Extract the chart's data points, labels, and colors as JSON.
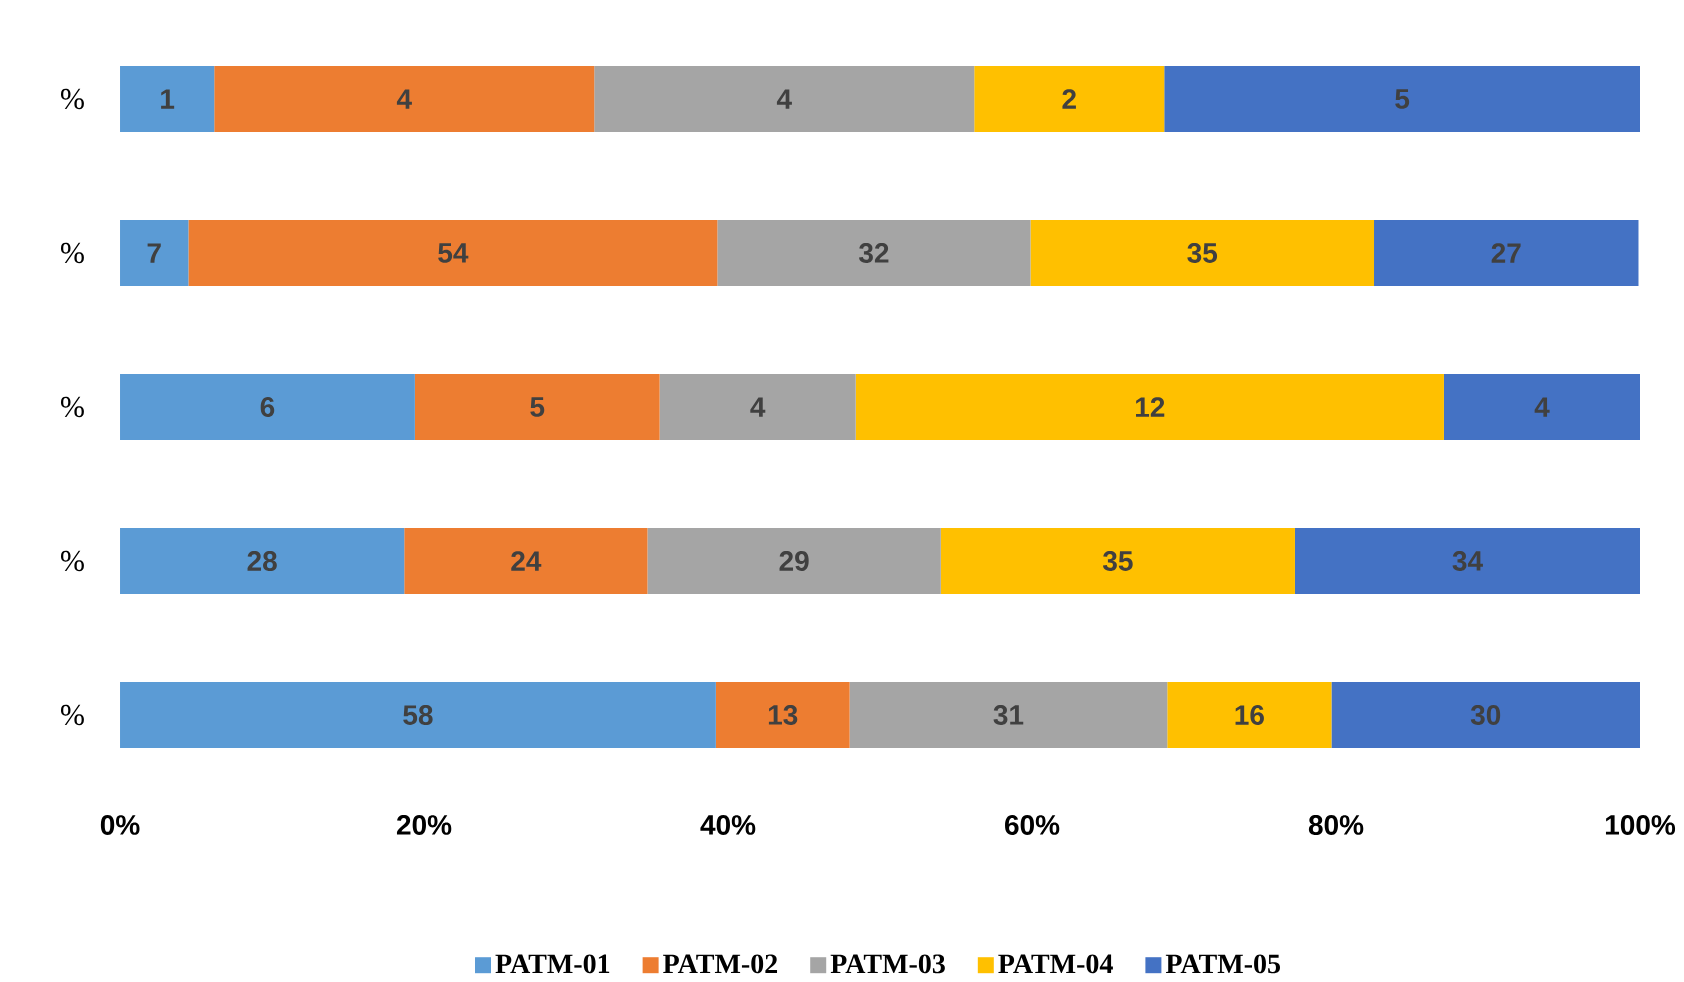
{
  "chart_data": {
    "type": "bar",
    "orientation": "horizontal",
    "stacked": true,
    "legend": "bottom",
    "categories": [
      "%",
      "%",
      "%",
      "%",
      "%"
    ],
    "xlim": [
      0,
      100
    ],
    "xticks": [
      {
        "value": 0,
        "label": "0%"
      },
      {
        "value": 20,
        "label": "20%"
      },
      {
        "value": 40,
        "label": "40%"
      },
      {
        "value": 60,
        "label": "60%"
      },
      {
        "value": 80,
        "label": "80%"
      },
      {
        "value": 100,
        "label": "100%"
      }
    ],
    "series": [
      {
        "name": "PATM-01",
        "color": "#5b9bd5",
        "values": [
          6.2,
          4.5,
          19.4,
          18.7,
          39.2
        ]
      },
      {
        "name": "PATM-02",
        "color": "#ed7d31",
        "values": [
          25,
          34.8,
          16.1,
          16,
          8.8
        ]
      },
      {
        "name": "PATM-03",
        "color": "#a5a5a5",
        "values": [
          25,
          20.6,
          12.9,
          19.3,
          20.9
        ]
      },
      {
        "name": "PATM-04",
        "color": "#ffc000",
        "values": [
          12.5,
          22.6,
          38.7,
          23.3,
          10.8
        ]
      },
      {
        "name": "PATM-05",
        "color": "#4472c4",
        "values": [
          31.3,
          17.4,
          12.9,
          22.7,
          20.3
        ]
      }
    ],
    "annotations": [
      "1",
      "7",
      "6",
      "28",
      "58",
      "4",
      "54",
      "5",
      "24",
      "13",
      "4",
      "32",
      "4",
      "29",
      "31",
      "2",
      "35",
      "12",
      "35",
      "16",
      "5",
      "27",
      "4",
      "34",
      "30"
    ]
  }
}
